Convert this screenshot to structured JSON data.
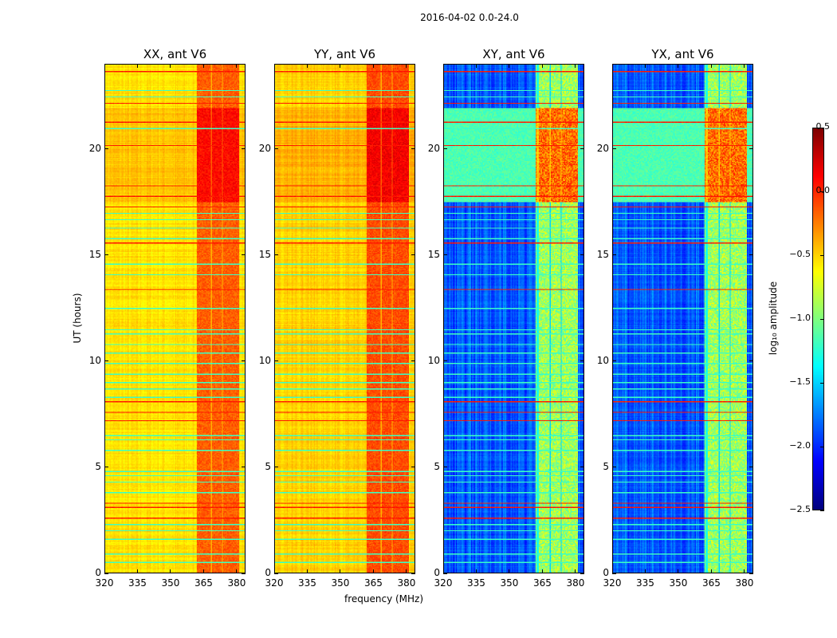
{
  "chart_data": {
    "type": "heatmap",
    "title": "2016-04-02 0.0-24.0",
    "xlabel": "frequency (MHz)",
    "ylabel": "UT (hours)",
    "xlim": [
      320,
      384
    ],
    "ylim": [
      0,
      24
    ],
    "xticks": [
      "320",
      "335",
      "350",
      "365",
      "380"
    ],
    "xtick_values": [
      320,
      335,
      350,
      365,
      380
    ],
    "yticks": [
      "0",
      "5",
      "10",
      "15",
      "20"
    ],
    "ytick_values": [
      0,
      5,
      10,
      15,
      20
    ],
    "colormap": "jet",
    "colorbar": {
      "label": "log₁₀ amplitude",
      "clim": [
        -2.5,
        0.5
      ],
      "ticks": [
        "0.5",
        "0.0",
        "−0.5",
        "−1.0",
        "−1.5",
        "−2.0",
        "−2.5"
      ],
      "tick_values": [
        0.5,
        0.0,
        -0.5,
        -1.0,
        -1.5,
        -2.0,
        -2.5
      ]
    },
    "panels": [
      {
        "title": "XX, ant V6",
        "baseline": -0.55,
        "rfi_band_level": -0.15,
        "kind": "parallel"
      },
      {
        "title": "YY, ant V6",
        "baseline": -0.5,
        "rfi_band_level": -0.1,
        "kind": "parallel"
      },
      {
        "title": "XY, ant V6",
        "baseline": -1.85,
        "rfi_band_level": -0.9,
        "kind": "cross"
      },
      {
        "title": "YX, ant V6",
        "baseline": -1.85,
        "rfi_band_level": -0.9,
        "kind": "cross"
      }
    ],
    "rfi_band_mhz": [
      362,
      381
    ],
    "high_rows_ut": [
      23.7,
      22.2,
      21.3,
      20.2,
      18.3,
      17.8,
      17.3,
      15.6,
      13.4,
      8.1,
      7.6,
      7.2,
      3.3,
      3.1,
      2.6
    ],
    "low_rows_ut": [
      22.8,
      22.5,
      21.0,
      17.0,
      16.7,
      16.3,
      15.8,
      14.6,
      14.1,
      12.5,
      11.5,
      11.3,
      10.8,
      10.4,
      9.9,
      9.4,
      9.0,
      8.7,
      8.3,
      6.5,
      6.3,
      5.8,
      4.8,
      4.6,
      4.3,
      3.8,
      2.3,
      2.0,
      1.6,
      0.9,
      0.5
    ]
  }
}
